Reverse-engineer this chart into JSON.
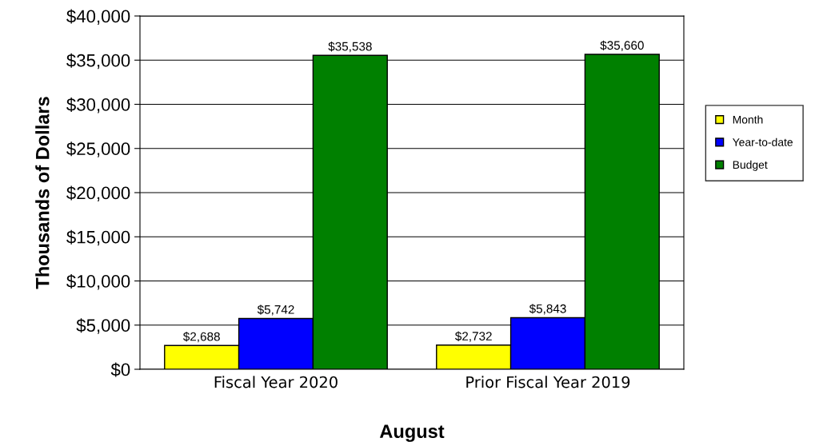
{
  "chart_data": {
    "type": "bar",
    "xlabel": "August",
    "ylabel": "Thousands of Dollars",
    "categories": [
      "Fiscal Year 2020",
      "Prior Fiscal Year 2019"
    ],
    "series": [
      {
        "name": "Month",
        "color": "#ffff00",
        "values": [
          2688,
          2732
        ],
        "value_labels": [
          "$2,688",
          "$2,732"
        ]
      },
      {
        "name": "Year-to-date",
        "color": "#0000ff",
        "values": [
          5742,
          5843
        ],
        "value_labels": [
          "$5,742",
          "$5,843"
        ]
      },
      {
        "name": "Budget",
        "color": "#008000",
        "values": [
          35538,
          35660
        ],
        "value_labels": [
          "$35,538",
          "$35,660"
        ]
      }
    ],
    "ylim": [
      0,
      40000
    ],
    "yticks": [
      {
        "value": 0,
        "label": "$0"
      },
      {
        "value": 5000,
        "label": "$5,000"
      },
      {
        "value": 10000,
        "label": "$10,000"
      },
      {
        "value": 15000,
        "label": "$15,000"
      },
      {
        "value": 20000,
        "label": "$20,000"
      },
      {
        "value": 25000,
        "label": "$25,000"
      },
      {
        "value": 30000,
        "label": "$30,000"
      },
      {
        "value": 35000,
        "label": "$35,000"
      },
      {
        "value": 40000,
        "label": "$40,000"
      }
    ],
    "grid": "y",
    "legend": "right"
  }
}
